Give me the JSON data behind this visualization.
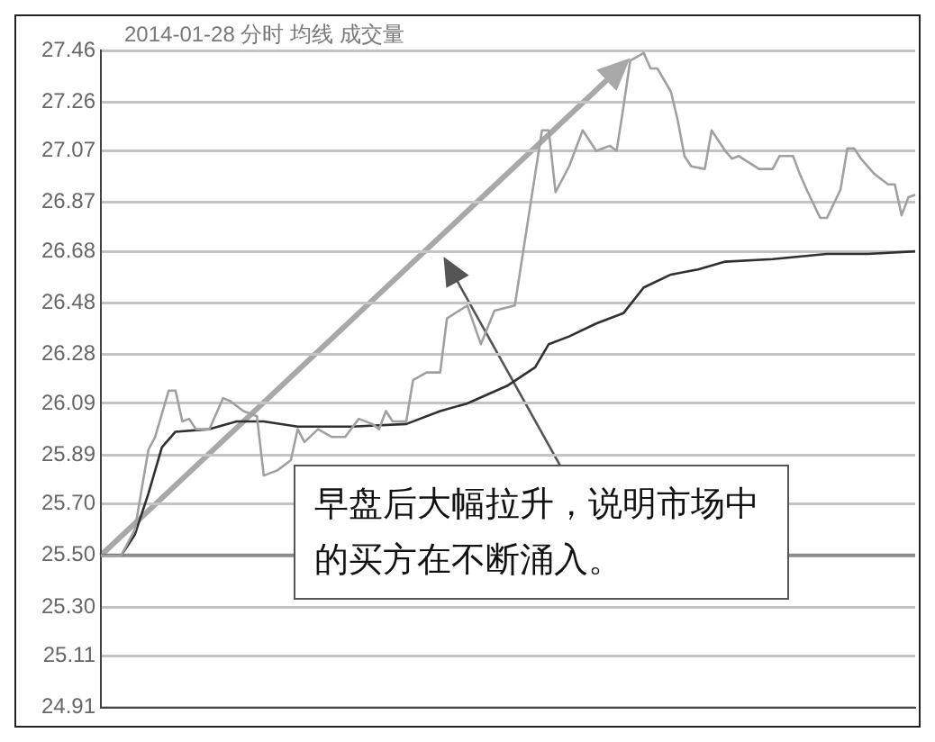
{
  "chart_data": {
    "type": "line",
    "title": "2014-01-28 分时 均线 成交量",
    "categories": [
      null,
      null,
      null,
      null,
      null,
      null,
      null,
      null,
      null,
      null,
      null,
      null,
      null,
      null,
      null,
      null,
      null,
      null,
      null,
      null,
      null,
      null,
      null,
      null,
      null,
      null,
      null,
      null,
      null,
      null,
      null,
      null,
      null,
      null,
      null,
      null,
      null,
      null,
      null,
      null,
      null,
      null,
      null,
      null,
      null,
      null,
      null,
      null,
      null,
      null,
      null,
      null,
      null,
      null,
      null,
      null,
      null,
      null,
      null,
      null,
      null,
      null,
      null,
      null,
      null,
      null,
      null,
      null,
      null,
      null,
      null,
      null,
      null,
      null,
      null,
      null,
      null,
      null,
      null,
      null,
      null,
      null,
      null,
      null,
      null,
      null,
      null,
      null,
      null,
      null,
      null,
      null,
      null,
      null,
      null,
      null,
      null,
      null,
      null,
      null,
      null,
      null,
      null,
      null,
      null,
      null,
      null,
      null,
      null,
      null,
      null,
      null,
      null,
      null,
      null,
      null,
      null,
      null,
      null,
      null,
      null
    ],
    "ylim": [
      24.91,
      27.46
    ],
    "yticks": [
      27.46,
      27.26,
      27.07,
      26.87,
      26.68,
      26.48,
      26.28,
      26.09,
      25.89,
      {
        "value": 25.7,
        "label": "25.70"
      },
      {
        "value": 25.5,
        "label": "25.50"
      },
      {
        "value": 25.3,
        "label": "25.30"
      },
      25.11,
      24.91
    ],
    "tick_labels": "y",
    "grid": "y",
    "marker": "none",
    "series": [
      {
        "color": "#a0a0a0",
        "values": [
          25.5,
          null,
          null,
          25.5,
          null,
          25.6,
          null,
          25.91,
          25.96,
          null,
          26.14,
          26.14,
          26.02,
          26.03,
          25.99,
          null,
          25.99,
          null,
          26.11,
          26.1,
          null,
          26.06,
          null,
          26.04,
          25.81,
          null,
          25.83,
          null,
          25.87,
          25.99,
          25.94,
          null,
          25.99,
          null,
          25.96,
          null,
          25.96,
          null,
          26.03,
          null,
          26.01,
          25.99,
          26.06,
          26.02,
          null,
          26.02,
          26.18,
          null,
          26.21,
          null,
          26.21,
          26.42,
          null,
          null,
          26.47,
          null,
          26.32,
          null,
          26.45,
          null,
          null,
          26.47,
          null,
          null,
          null,
          27.15,
          27.15,
          26.91,
          null,
          27.01,
          null,
          27.15,
          null,
          27.07,
          null,
          27.09,
          27.07,
          27.24,
          27.42,
          null,
          27.45,
          27.39,
          27.39,
          null,
          27.3,
          27.19,
          27.05,
          27.01,
          null,
          27.0,
          27.15,
          null,
          27.07,
          27.04,
          27.05,
          null,
          null,
          27.0,
          null,
          27.0,
          27.05,
          null,
          27.05,
          26.98,
          26.92,
          null,
          26.81,
          26.81,
          null,
          26.92,
          27.08,
          27.08,
          27.04,
          null,
          26.98,
          null,
          26.94,
          26.94,
          26.82,
          26.89,
          26.9
        ]
      },
      {
        "color": "#303030",
        "values": [
          25.5,
          null,
          null,
          25.5,
          null,
          25.58,
          null,
          25.74,
          null,
          25.92,
          null,
          25.98,
          null,
          null,
          null,
          null,
          25.99,
          null,
          null,
          null,
          26.02,
          null,
          null,
          null,
          26.02,
          null,
          null,
          null,
          null,
          26.0,
          null,
          null,
          null,
          null,
          null,
          null,
          null,
          26.0,
          null,
          null,
          null,
          null,
          null,
          null,
          null,
          26.01,
          null,
          null,
          null,
          null,
          26.06,
          null,
          null,
          null,
          26.09,
          null,
          null,
          null,
          null,
          null,
          26.16,
          null,
          null,
          null,
          26.23,
          null,
          26.32,
          null,
          null,
          26.35,
          null,
          null,
          null,
          26.4,
          null,
          null,
          null,
          26.44,
          null,
          null,
          26.54,
          null,
          null,
          null,
          26.59,
          null,
          null,
          null,
          26.61,
          null,
          null,
          null,
          26.64,
          null,
          null,
          null,
          null,
          null,
          null,
          26.65,
          null,
          null,
          null,
          null,
          null,
          null,
          null,
          26.67,
          null,
          null,
          null,
          null,
          null,
          26.67,
          null,
          null,
          null,
          null,
          null,
          null,
          26.68
        ]
      }
    ],
    "ref_lines": [
      {
        "axis": "y",
        "value": 25.5,
        "color": "#8c8c8c"
      }
    ],
    "annotations": [
      "早盘后大幅拉升，说明市场中的买方在不断涌入。"
    ]
  }
}
